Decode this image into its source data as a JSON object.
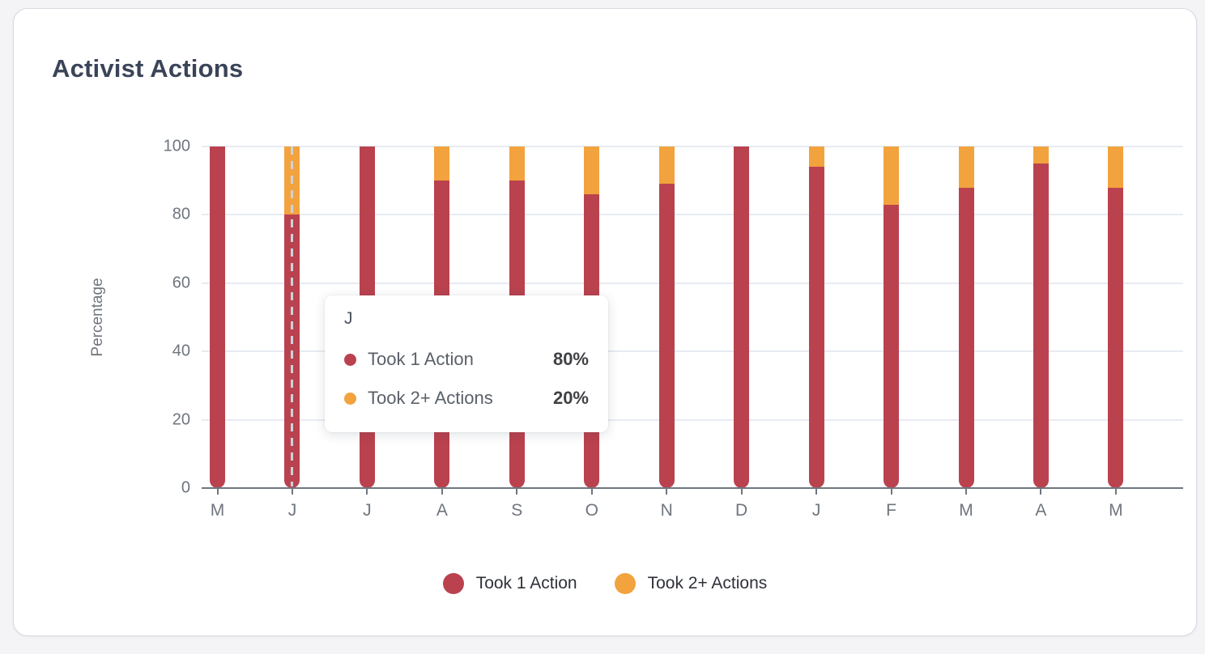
{
  "card": {
    "title": "Activist Actions"
  },
  "chart_data": {
    "type": "bar",
    "stacked": true,
    "categories": [
      "M",
      "J",
      "J",
      "A",
      "S",
      "O",
      "N",
      "D",
      "J",
      "F",
      "M",
      "A",
      "M"
    ],
    "series": [
      {
        "name": "Took 1 Action",
        "color": "#ba424f",
        "values": [
          100,
          80,
          100,
          90,
          90,
          86,
          89,
          100,
          94,
          83,
          88,
          95,
          88
        ]
      },
      {
        "name": "Took 2+ Actions",
        "color": "#f2a33e",
        "values": [
          0,
          20,
          0,
          10,
          10,
          14,
          11,
          0,
          6,
          17,
          12,
          5,
          12
        ]
      }
    ],
    "title": "Activist Actions",
    "xlabel": "",
    "ylabel": "Percentage",
    "ylim": [
      0,
      100
    ],
    "yticks": [
      0,
      20,
      40,
      60,
      80,
      100
    ],
    "grid": true,
    "legend_position": "bottom",
    "hover_index": 1
  },
  "tooltip": {
    "title": "J",
    "rows": [
      {
        "label": "Took 1 Action",
        "value": "80%",
        "color": "#ba424f"
      },
      {
        "label": "Took 2+ Actions",
        "value": "20%",
        "color": "#f2a33e"
      }
    ]
  },
  "legend": {
    "items": [
      {
        "label": "Took 1 Action",
        "color": "#ba424f"
      },
      {
        "label": "Took 2+ Actions",
        "color": "#f2a33e"
      }
    ]
  },
  "colors": {
    "series1": "#ba424f",
    "series2": "#f2a33e",
    "gridline": "#e7ebf3",
    "axis": "#70767f",
    "title_text": "#3a4458",
    "tick_text": "#6f757e",
    "page_bg": "#f4f4f6",
    "card_bg": "#ffffff"
  }
}
